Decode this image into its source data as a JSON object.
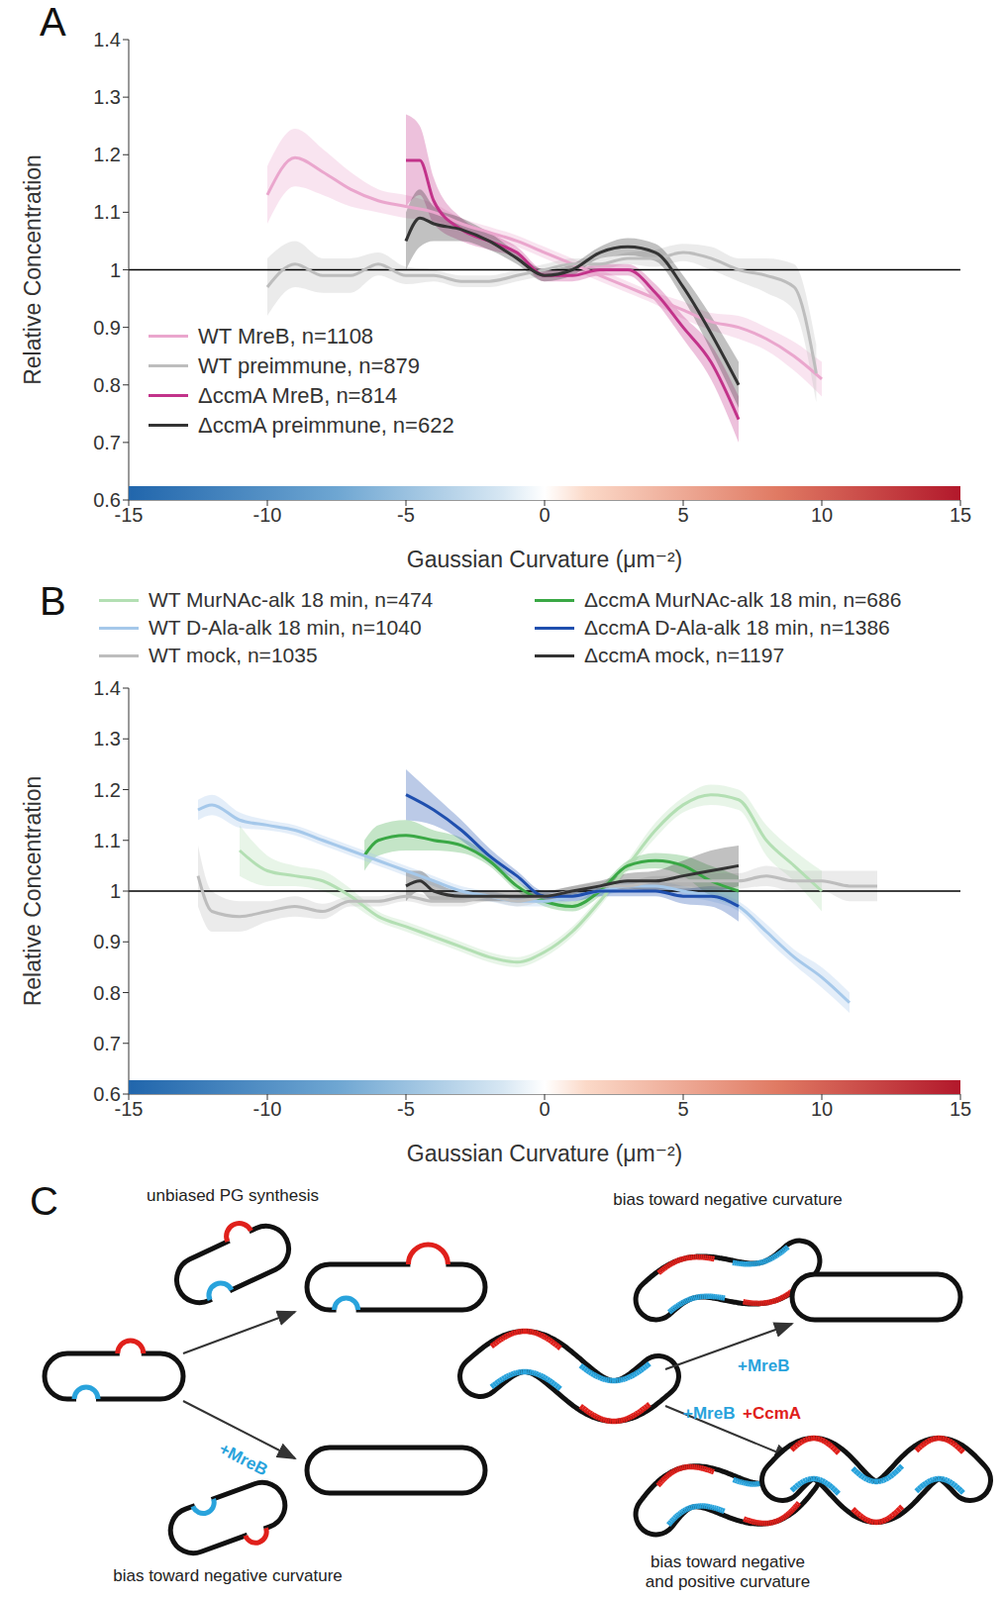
{
  "chart_data": [
    {
      "type": "line",
      "panel": "A",
      "x_label": "Gaussian Curvature (μm⁻²)",
      "y_label": "Relative Concentration",
      "xlim": [
        -15,
        15
      ],
      "xticks": [
        -15,
        -10,
        -5,
        0,
        5,
        10,
        15
      ],
      "ylim": [
        0.6,
        1.4
      ],
      "yticks": [
        0.6,
        0.7,
        0.8,
        0.9,
        1,
        1.1,
        1.2,
        1.3,
        1.4
      ],
      "hline": 1,
      "colorbar_range": [
        -15,
        15
      ],
      "legend": "lower left",
      "series": [
        {
          "name": "WT MreB, n=1108",
          "color": "#eaa6cd",
          "x": [
            -10,
            -9,
            -8,
            -7,
            -6,
            -5,
            -4,
            -3,
            -2,
            -1,
            0,
            1,
            2,
            3,
            4,
            5,
            6,
            7,
            8,
            9,
            10
          ],
          "values": [
            1.13,
            1.195,
            1.17,
            1.14,
            1.12,
            1.11,
            1.1,
            1.08,
            1.065,
            1.05,
            1.03,
            1.01,
            0.99,
            0.97,
            0.95,
            0.93,
            0.91,
            0.9,
            0.88,
            0.85,
            0.81
          ],
          "error": [
            0.05,
            0.05,
            0.04,
            0.03,
            0.02,
            0.02,
            0.015,
            0.01,
            0.01,
            0.01,
            0.01,
            0.01,
            0.01,
            0.01,
            0.01,
            0.015,
            0.015,
            0.02,
            0.02,
            0.025,
            0.03
          ]
        },
        {
          "name": "WT preimmune, n=879",
          "color": "#bdbdbd",
          "x": [
            -10,
            -9,
            -8,
            -7,
            -6,
            -5,
            -4,
            -3,
            -2,
            -1,
            0,
            1,
            2,
            3,
            4,
            5,
            6,
            7,
            8,
            9,
            9.8
          ],
          "values": [
            0.97,
            1.01,
            0.99,
            0.99,
            1.01,
            0.99,
            0.99,
            0.98,
            0.98,
            0.99,
            1.0,
            1.01,
            1.01,
            1.02,
            1.02,
            1.03,
            1.02,
            1.0,
            0.99,
            0.97,
            0.82
          ],
          "error": [
            0.05,
            0.04,
            0.03,
            0.03,
            0.02,
            0.015,
            0.01,
            0.01,
            0.01,
            0.01,
            0.01,
            0.01,
            0.01,
            0.01,
            0.015,
            0.015,
            0.02,
            0.02,
            0.03,
            0.04,
            0.05
          ]
        },
        {
          "name": "ΔccmA MreB, n=814",
          "color": "#c2338a",
          "x": [
            -5,
            -4.5,
            -4,
            -3,
            -2,
            -1,
            0,
            1,
            2,
            3,
            4,
            5,
            6,
            7
          ],
          "values": [
            1.19,
            1.19,
            1.12,
            1.07,
            1.05,
            1.03,
            0.99,
            0.99,
            1.0,
            1.0,
            0.96,
            0.9,
            0.84,
            0.74
          ],
          "error": [
            0.08,
            0.06,
            0.04,
            0.02,
            0.015,
            0.01,
            0.01,
            0.01,
            0.01,
            0.01,
            0.015,
            0.02,
            0.03,
            0.04
          ]
        },
        {
          "name": "ΔccmA preimmune, n=622",
          "color": "#333333",
          "x": [
            -5,
            -4.5,
            -4,
            -3,
            -2,
            -1,
            0,
            1,
            2,
            3,
            4,
            5,
            6,
            7
          ],
          "values": [
            1.05,
            1.09,
            1.08,
            1.07,
            1.05,
            1.02,
            0.99,
            1.0,
            1.03,
            1.04,
            1.03,
            0.97,
            0.89,
            0.8
          ],
          "error": [
            0.05,
            0.05,
            0.03,
            0.02,
            0.015,
            0.01,
            0.01,
            0.01,
            0.01,
            0.015,
            0.015,
            0.02,
            0.03,
            0.04
          ]
        }
      ]
    },
    {
      "type": "line",
      "panel": "B",
      "x_label": "Gaussian Curvature (μm⁻²)",
      "y_label": "Relative Concentration",
      "xlim": [
        -15,
        15
      ],
      "xticks": [
        -15,
        -10,
        -5,
        0,
        5,
        10,
        15
      ],
      "ylim": [
        0.6,
        1.4
      ],
      "yticks": [
        0.6,
        0.7,
        0.8,
        0.9,
        1,
        1.1,
        1.2,
        1.3,
        1.4
      ],
      "hline": 1,
      "colorbar_range": [
        -15,
        15
      ],
      "legend": "top",
      "series": [
        {
          "name": "WT MurNAc-alk 18 min, n=474",
          "color": "#b3dfb3",
          "x": [
            -11,
            -10,
            -9,
            -8,
            -7,
            -6,
            -5,
            -4,
            -3,
            -2,
            -1,
            0,
            1,
            2,
            3,
            4,
            5,
            6,
            7,
            8,
            9,
            10
          ],
          "values": [
            1.08,
            1.04,
            1.03,
            1.02,
            0.99,
            0.95,
            0.93,
            0.91,
            0.89,
            0.87,
            0.86,
            0.88,
            0.92,
            0.98,
            1.05,
            1.12,
            1.17,
            1.19,
            1.18,
            1.1,
            1.05,
            1.0
          ],
          "error": [
            0.05,
            0.03,
            0.02,
            0.02,
            0.015,
            0.01,
            0.01,
            0.01,
            0.01,
            0.01,
            0.01,
            0.01,
            0.01,
            0.01,
            0.01,
            0.015,
            0.015,
            0.02,
            0.02,
            0.03,
            0.03,
            0.04
          ]
        },
        {
          "name": "ΔccmA MurNAc-alk 18 min, n=686",
          "color": "#3aa845",
          "x": [
            -6.5,
            -6,
            -5,
            -4,
            -3,
            -2,
            -1,
            0,
            1,
            2,
            3,
            4,
            5,
            6,
            7
          ],
          "values": [
            1.07,
            1.1,
            1.11,
            1.1,
            1.09,
            1.06,
            1.01,
            0.98,
            0.97,
            1.0,
            1.05,
            1.06,
            1.05,
            1.02,
            1.0
          ],
          "error": [
            0.03,
            0.03,
            0.03,
            0.02,
            0.015,
            0.01,
            0.01,
            0.01,
            0.01,
            0.01,
            0.01,
            0.015,
            0.02,
            0.03,
            0.03
          ]
        },
        {
          "name": "WT D-Ala-alk 18 min, n=1040",
          "color": "#a5c8ea",
          "x": [
            -12.5,
            -12,
            -11,
            -10,
            -9,
            -8,
            -7,
            -6,
            -5,
            -4,
            -3,
            -2,
            -1,
            0,
            1,
            2,
            3,
            4,
            5,
            6,
            7,
            8,
            9,
            10,
            11
          ],
          "values": [
            1.16,
            1.17,
            1.14,
            1.13,
            1.12,
            1.1,
            1.08,
            1.06,
            1.04,
            1.02,
            1.0,
            0.99,
            0.98,
            0.98,
            0.99,
            1.0,
            1.01,
            1.01,
            1.0,
            0.99,
            0.97,
            0.92,
            0.87,
            0.83,
            0.78
          ],
          "error": [
            0.02,
            0.02,
            0.015,
            0.01,
            0.01,
            0.01,
            0.01,
            0.01,
            0.01,
            0.01,
            0.01,
            0.01,
            0.01,
            0.01,
            0.01,
            0.01,
            0.01,
            0.01,
            0.01,
            0.01,
            0.01,
            0.015,
            0.015,
            0.02,
            0.02
          ]
        },
        {
          "name": "ΔccmA D-Ala-alk 18 min, n=1386",
          "color": "#1f4fae",
          "x": [
            -5,
            -4,
            -3,
            -2,
            -1,
            0,
            1,
            2,
            3,
            4,
            5,
            6,
            7
          ],
          "values": [
            1.19,
            1.16,
            1.12,
            1.07,
            1.03,
            0.99,
            0.99,
            1.0,
            1.0,
            1.0,
            0.99,
            0.99,
            0.97
          ],
          "error": [
            0.05,
            0.03,
            0.02,
            0.015,
            0.01,
            0.01,
            0.01,
            0.01,
            0.01,
            0.01,
            0.015,
            0.02,
            0.03
          ]
        },
        {
          "name": "WT mock, n=1035",
          "color": "#bdbdbd",
          "x": [
            -12.5,
            -12,
            -11,
            -10,
            -9,
            -8,
            -7,
            -6,
            -5,
            -4,
            -3,
            -2,
            -1,
            0,
            1,
            2,
            3,
            4,
            5,
            6,
            7,
            8,
            9,
            10,
            11,
            12
          ],
          "values": [
            1.03,
            0.96,
            0.95,
            0.96,
            0.97,
            0.96,
            0.98,
            0.98,
            0.99,
            0.98,
            0.98,
            0.99,
            0.98,
            0.99,
            1.0,
            1.01,
            1.01,
            1.02,
            1.02,
            1.02,
            1.02,
            1.03,
            1.02,
            1.02,
            1.01,
            1.01
          ],
          "error": [
            0.06,
            0.04,
            0.03,
            0.02,
            0.02,
            0.015,
            0.01,
            0.01,
            0.01,
            0.01,
            0.01,
            0.01,
            0.01,
            0.01,
            0.01,
            0.01,
            0.01,
            0.01,
            0.01,
            0.015,
            0.015,
            0.02,
            0.02,
            0.02,
            0.03,
            0.03
          ]
        },
        {
          "name": "ΔccmA mock, n=1197",
          "color": "#333333",
          "x": [
            -5,
            -4.5,
            -4,
            -3,
            -2,
            -1,
            0,
            1,
            2,
            3,
            4,
            5,
            6,
            7
          ],
          "values": [
            1.01,
            1.02,
            1.0,
            0.99,
            0.99,
            0.99,
            0.99,
            1.0,
            1.01,
            1.02,
            1.02,
            1.03,
            1.04,
            1.05
          ],
          "error": [
            0.03,
            0.02,
            0.02,
            0.01,
            0.01,
            0.01,
            0.01,
            0.01,
            0.01,
            0.015,
            0.02,
            0.03,
            0.04,
            0.04
          ]
        }
      ]
    }
  ],
  "diagram": {
    "panel": "C",
    "left": {
      "upper_label": "unbiased PG synthesis",
      "lower_arrow": "+MreB",
      "lower_label": "bias toward negative curvature"
    },
    "right": {
      "upper_label": "bias toward negative curvature",
      "upper_arrow": "+MreB",
      "lower_arrow": [
        "+MreB",
        "+CcmA"
      ],
      "lower_label": "bias toward negative and positive curvature"
    }
  }
}
